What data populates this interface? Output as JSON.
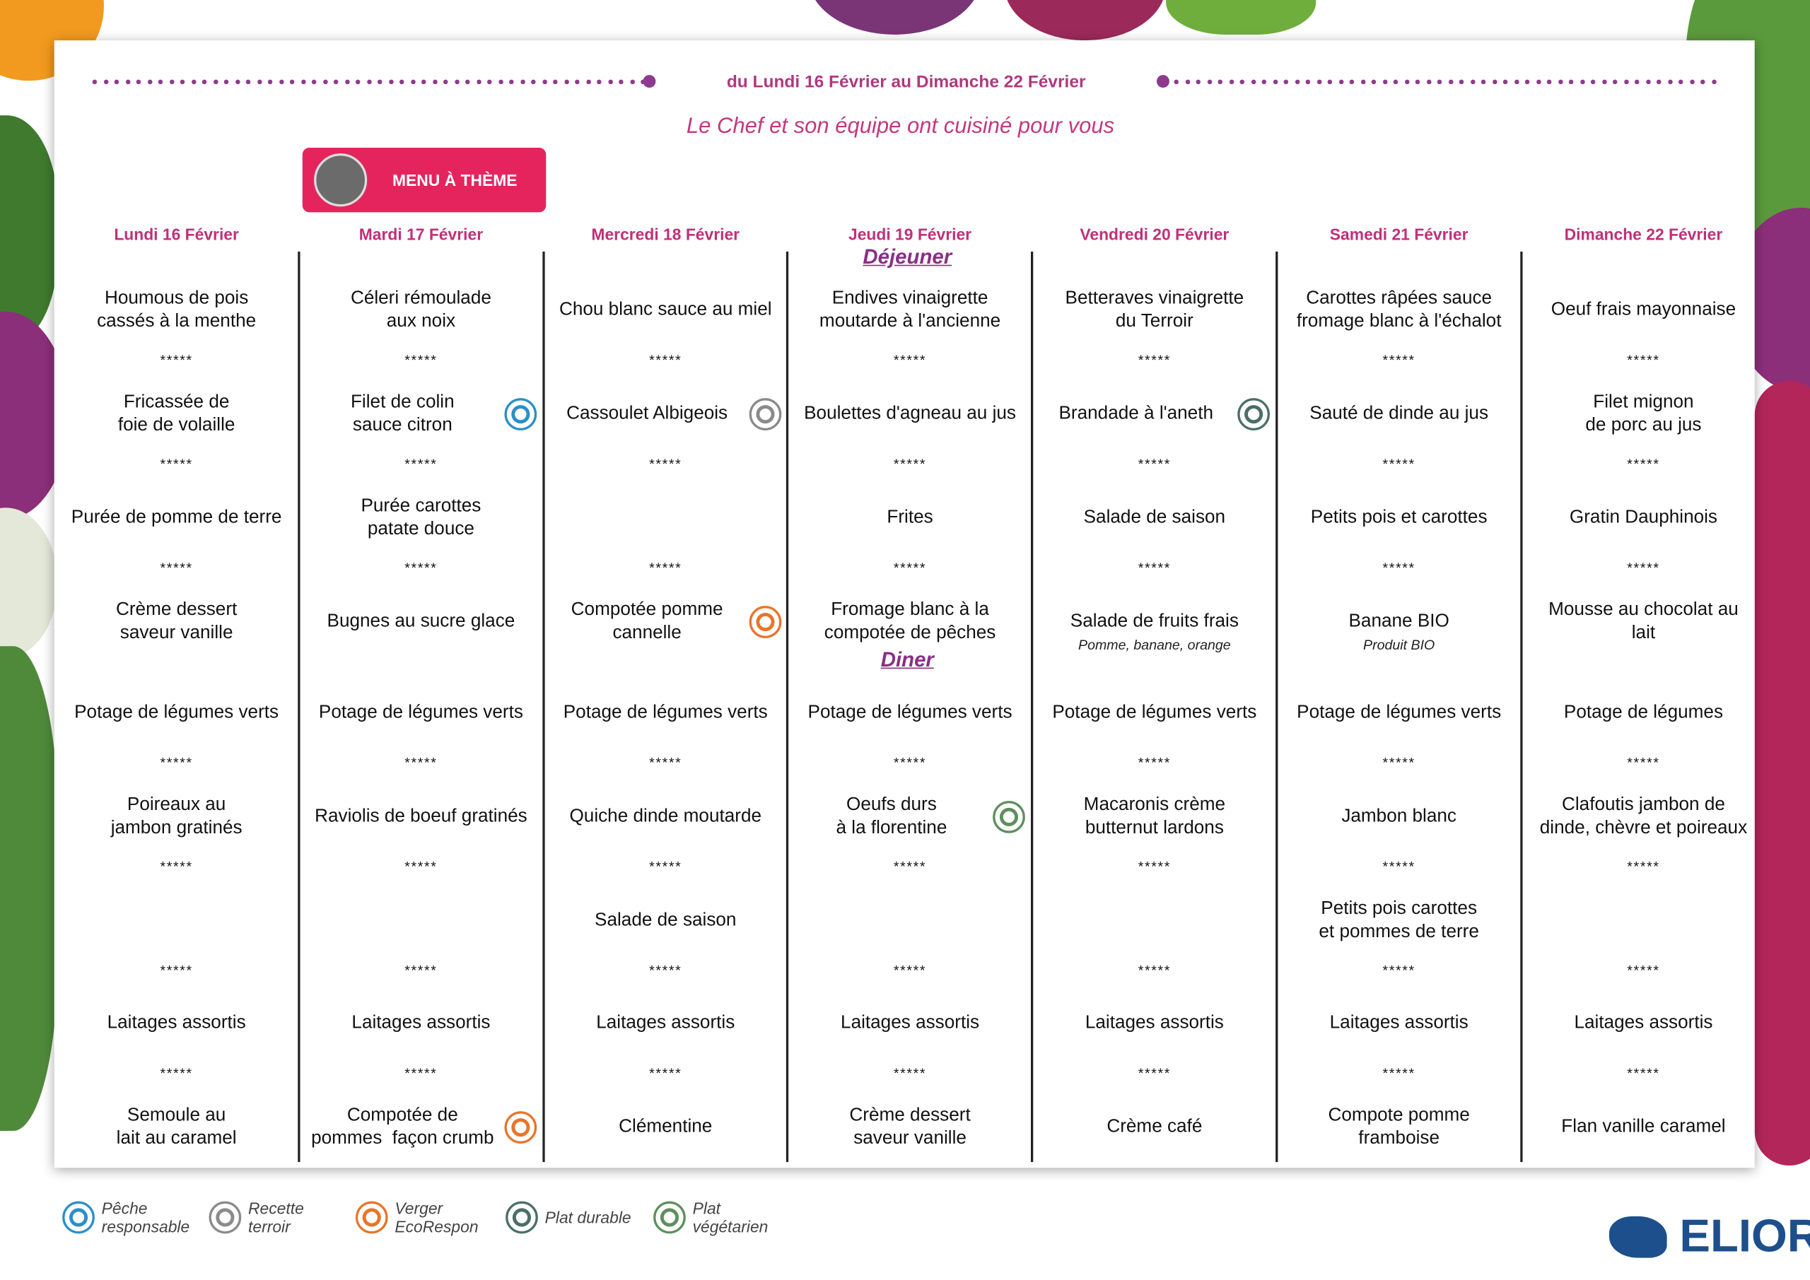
{
  "header": {
    "date_range": "du Lundi 16 Février au Dimanche 22 Février",
    "subtitle": "Le Chef et son équipe ont cuisiné pour vous",
    "theme_badge": "MENU À THÈME"
  },
  "meals": {
    "lunch": "Déjeuner",
    "dinner": "Diner"
  },
  "separator": "*****",
  "days": [
    {
      "label": "Lundi 16 Février",
      "items": [
        {
          "text": "Houmous de pois\ncassés à la menthe"
        },
        {
          "text": "Fricassée de\nfoie de volaille"
        },
        {
          "text": "Purée de pomme de terre"
        },
        {
          "text": "Crème dessert\nsaveur vanille"
        },
        {
          "text": "Potage de légumes verts"
        },
        {
          "text": "Poireaux au\njambon gratinés"
        },
        null,
        {
          "text": "Laitages assortis"
        },
        {
          "text": "Semoule au\nlait au caramel"
        }
      ]
    },
    {
      "label": "Mardi 17 Février",
      "items": [
        {
          "text": "Céleri rémoulade\naux noix"
        },
        {
          "text": "Filet de colin\nsauce citron",
          "icon": 0
        },
        {
          "text": "Purée carottes\npatate douce"
        },
        {
          "text": "Bugnes au sucre glace"
        },
        {
          "text": "Potage de légumes verts"
        },
        {
          "text": "Raviolis de boeuf gratinés"
        },
        null,
        {
          "text": "Laitages assortis"
        },
        {
          "text": "Compotée de\npommes  façon crumb",
          "icon": 2
        }
      ]
    },
    {
      "label": "Mercredi 18 Février",
      "items": [
        {
          "text": "Chou blanc sauce au miel"
        },
        {
          "text": "Cassoulet Albigeois",
          "icon": 1
        },
        null,
        {
          "text": "Compotée pomme\ncannelle",
          "icon": 2
        },
        {
          "text": "Potage de légumes verts"
        },
        {
          "text": "Quiche dinde moutarde"
        },
        {
          "text": "Salade de saison"
        },
        {
          "text": "Laitages assortis"
        },
        {
          "text": "Clémentine"
        }
      ]
    },
    {
      "label": "Jeudi 19 Février",
      "items": [
        {
          "text": "Endives vinaigrette\nmoutarde à l'ancienne"
        },
        {
          "text": "Boulettes d'agneau au jus"
        },
        {
          "text": "Frites"
        },
        {
          "text": "Fromage blanc à la\ncompotée de pêches"
        },
        {
          "text": "Potage de légumes verts"
        },
        {
          "text": "Oeufs durs\nà la florentine",
          "icon": 4
        },
        null,
        {
          "text": "Laitages assortis"
        },
        {
          "text": "Crème dessert\nsaveur vanille"
        }
      ]
    },
    {
      "label": "Vendredi 20 Février",
      "items": [
        {
          "text": "Betteraves vinaigrette\ndu Terroir"
        },
        {
          "text": "Brandade à l'aneth",
          "icon": 3
        },
        {
          "text": "Salade de saison"
        },
        {
          "text": "Salade de fruits frais",
          "note": "Pomme, banane, orange"
        },
        {
          "text": "Potage de légumes verts"
        },
        {
          "text": "Macaronis crème\nbutternut lardons"
        },
        null,
        {
          "text": "Laitages assortis"
        },
        {
          "text": "Crème café"
        }
      ]
    },
    {
      "label": "Samedi 21 Février",
      "items": [
        {
          "text": "Carottes râpées sauce\nfromage blanc à l'échalot"
        },
        {
          "text": "Sauté de dinde au jus"
        },
        {
          "text": "Petits pois et carottes"
        },
        {
          "text": "Banane BIO",
          "note": "Produit BIO"
        },
        {
          "text": "Potage de légumes verts"
        },
        {
          "text": "Jambon blanc"
        },
        {
          "text": "Petits pois carottes\net pommes de terre"
        },
        {
          "text": "Laitages assortis"
        },
        {
          "text": "Compote pomme\nframboise"
        }
      ]
    },
    {
      "label": "Dimanche 22 Février",
      "items": [
        {
          "text": "Oeuf frais mayonnaise"
        },
        {
          "text": "Filet mignon\nde porc au jus"
        },
        {
          "text": "Gratin Dauphinois"
        },
        {
          "text": "Mousse au chocolat au\nlait"
        },
        {
          "text": "Potage de légumes"
        },
        {
          "text": "Clafoutis jambon de\ndinde, chèvre et poireaux"
        },
        null,
        {
          "text": "Laitages assortis"
        },
        {
          "text": "Flan vanille caramel"
        }
      ]
    }
  ],
  "legend": [
    {
      "label": "Pêche\nresponsable",
      "color": "#2a8fc9"
    },
    {
      "label": "Recette\nterroir",
      "color": "#8a8a8a"
    },
    {
      "label": "Verger\nEcoRespon",
      "color": "#e8752b"
    },
    {
      "label": "Plat durable",
      "color": "#4a6f66"
    },
    {
      "label": "Plat\nvégétarien",
      "color": "#5d8f5d"
    }
  ],
  "logo": "ELIOR"
}
